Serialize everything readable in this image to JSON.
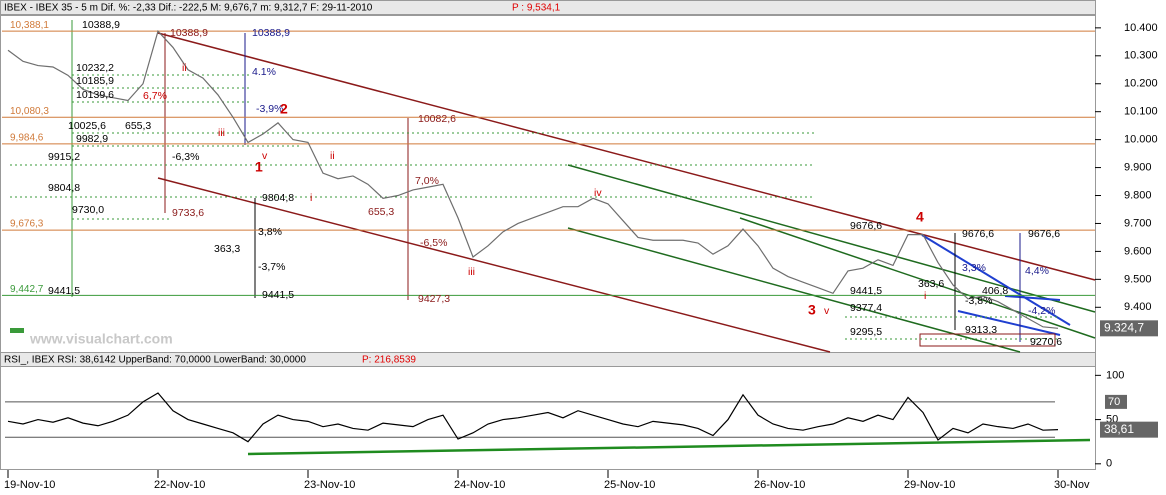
{
  "chart_data": [
    {
      "type": "line",
      "title": "IBEX - IBEX 35 -  5 m Dif. %: -2,33 Dif.: -222,5 M: 9,676,7 m: 9,312,7 F: 29-11-2010",
      "title_price": "P : 9,534,1",
      "watermark": "www.visualchart.com",
      "categories": [
        "19-Nov-10",
        null,
        null,
        null,
        null,
        null,
        null,
        null,
        null,
        null,
        "22-Nov-10",
        null,
        null,
        null,
        null,
        null,
        null,
        null,
        null,
        null,
        "23-Nov-10",
        null,
        null,
        null,
        null,
        null,
        null,
        null,
        null,
        null,
        "24-Nov-10",
        null,
        null,
        null,
        null,
        null,
        null,
        null,
        null,
        null,
        "25-Nov-10",
        null,
        null,
        null,
        null,
        null,
        null,
        null,
        null,
        null,
        "26-Nov-10",
        null,
        null,
        null,
        null,
        null,
        null,
        null,
        null,
        null,
        "29-Nov-10",
        null,
        null,
        null,
        null,
        null,
        null,
        null,
        null,
        null,
        "30-Nov"
      ],
      "series": [
        {
          "name": "IBEX 35",
          "color": "#6e6e6e",
          "values": [
            10320,
            10280,
            10265,
            10260,
            10230,
            10180,
            10160,
            10150,
            10140,
            10200,
            10388,
            10330,
            10250,
            10220,
            10160,
            10080,
            9990,
            10020,
            10060,
            10000,
            9990,
            9880,
            9860,
            9870,
            9840,
            9790,
            9800,
            9820,
            9830,
            9840,
            9720,
            9580,
            9620,
            9670,
            9700,
            9720,
            9740,
            9760,
            9760,
            9790,
            9770,
            9710,
            9650,
            9640,
            9640,
            9640,
            9630,
            9590,
            9620,
            9680,
            9620,
            9540,
            9510,
            9490,
            9470,
            9450,
            9530,
            9540,
            9570,
            9550,
            9660,
            9660,
            9560,
            9480,
            9430,
            9440,
            9420,
            9390,
            9360,
            9330,
            9324.7
          ],
          "value_labels": [
            null,
            null,
            null,
            null,
            null,
            null,
            null,
            null,
            null,
            null,
            null,
            null,
            null,
            null,
            null,
            null,
            null,
            null,
            null,
            null,
            null,
            null,
            null,
            null,
            null,
            null,
            null,
            null,
            null,
            null,
            null,
            null,
            null,
            null,
            null,
            null,
            null,
            null,
            null,
            null,
            null,
            null,
            null,
            null,
            null,
            null,
            null,
            null,
            null,
            null,
            null,
            null,
            null,
            null,
            null,
            null,
            null,
            null,
            null,
            null,
            null,
            null,
            null,
            null,
            null,
            null,
            null,
            null,
            null,
            null,
            "9.324,7"
          ]
        }
      ],
      "ylim": [
        9240,
        10446
      ],
      "yticks": [
        {
          "value": 10400,
          "label": "10.400"
        },
        {
          "value": 10300,
          "label": "10.300"
        },
        {
          "value": 10200,
          "label": "10.200"
        },
        {
          "value": 10100,
          "label": "10.100"
        },
        {
          "value": 10000,
          "label": "10.000"
        },
        {
          "value": 9900,
          "label": "9.900"
        },
        {
          "value": 9800,
          "label": "9.800"
        },
        {
          "value": 9700,
          "label": "9.700"
        },
        {
          "value": 9600,
          "label": "9.600"
        },
        {
          "value": 9500,
          "label": "9.500"
        },
        {
          "value": 9400,
          "label": "9.400"
        }
      ],
      "levels": [
        {
          "value": 10388.1,
          "label": "10,388,1",
          "color": "#d07a3a"
        },
        {
          "value": 10080.3,
          "label": "10,080,3",
          "color": "#d07a3a"
        },
        {
          "value": 9984.6,
          "label": "9,984,6",
          "color": "#d07a3a"
        },
        {
          "value": 9676.3,
          "label": "9,676,3",
          "color": "#d07a3a"
        },
        {
          "value": 9442.7,
          "label": "9,442,7",
          "color": "#3a9a3a"
        }
      ],
      "annotations": [
        "10388,9",
        "10388,9",
        "10388,9",
        "10232,2",
        "10185,9",
        "10139,6",
        "10025,6",
        "9982,9",
        "9915,2",
        "9804,8",
        "9730,0",
        "9441,5",
        "655,3",
        "6,7%",
        "4.1%",
        "-3,9%",
        "-6,3%",
        "9733,6",
        "9804,8",
        "3,8%",
        "363,3",
        "-3,7%",
        "9441,5",
        "10082,6",
        "7,0%",
        "655,3",
        "-6,5%",
        "9427,3",
        "9676,6",
        "9676,6",
        "9676,6",
        "9441,5",
        "9377,4",
        "9295,5",
        "9313,3",
        "406,8",
        "4,4%",
        "3,3%",
        "-4,2%",
        "-3,8%",
        "363,6",
        "9270,6",
        "1",
        "2",
        "3",
        "4",
        "ii",
        "iii",
        "v",
        "ii",
        "i",
        "iii",
        "iv",
        "v",
        "i"
      ]
    },
    {
      "type": "line",
      "title": "RSI_, IBEX RSI: 38,6142 UpperBand: 70,0000 LowerBand: 30,0000",
      "title_price": "P: 216,8539",
      "series": [
        {
          "name": "RSI",
          "color": "#000000",
          "values": [
            48,
            45,
            50,
            47,
            52,
            46,
            43,
            48,
            55,
            70,
            80,
            60,
            50,
            45,
            40,
            35,
            25,
            45,
            55,
            50,
            48,
            42,
            45,
            40,
            38,
            46,
            44,
            42,
            50,
            55,
            28,
            35,
            45,
            50,
            52,
            55,
            58,
            52,
            60,
            55,
            50,
            45,
            42,
            48,
            46,
            44,
            40,
            32,
            50,
            78,
            55,
            45,
            40,
            38,
            42,
            45,
            52,
            48,
            55,
            50,
            75,
            58,
            27,
            40,
            35,
            45,
            42,
            40,
            45,
            38,
            38.61
          ],
          "value_labels": [
            null,
            null,
            null,
            null,
            null,
            null,
            null,
            null,
            null,
            null,
            null,
            null,
            null,
            null,
            null,
            null,
            null,
            null,
            null,
            null,
            null,
            null,
            null,
            null,
            null,
            null,
            null,
            null,
            null,
            null,
            null,
            null,
            null,
            null,
            null,
            null,
            null,
            null,
            null,
            null,
            null,
            null,
            null,
            null,
            null,
            null,
            null,
            null,
            null,
            null,
            null,
            null,
            null,
            null,
            null,
            null,
            null,
            null,
            null,
            null,
            null,
            null,
            null,
            null,
            null,
            null,
            null,
            null,
            null,
            null,
            "38,61"
          ]
        }
      ],
      "ylim": [
        -7,
        123
      ],
      "yticks": [
        100,
        50,
        0
      ],
      "bands": [
        70,
        30
      ]
    }
  ]
}
